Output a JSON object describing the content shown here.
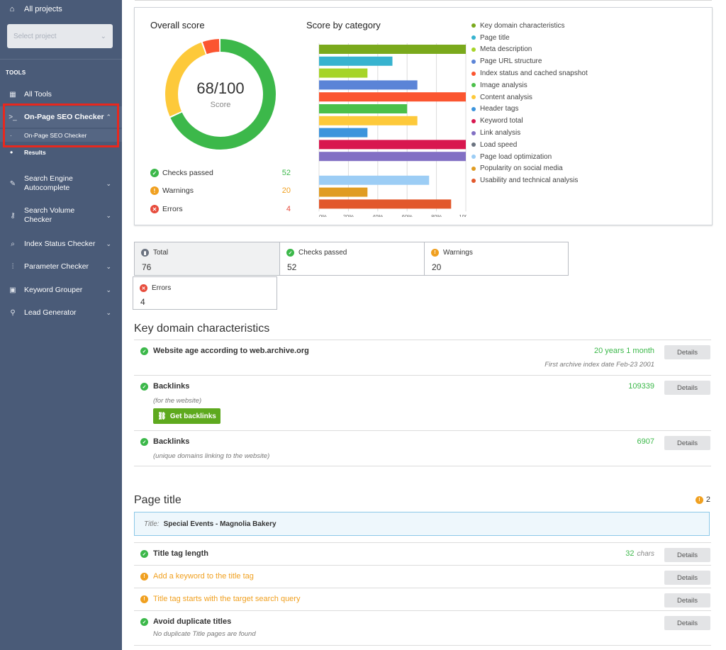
{
  "sidebar": {
    "all_projects": "All projects",
    "select_placeholder": "Select project",
    "tools_heading": "TOOLS",
    "items": [
      {
        "label": "All Tools",
        "icon": "grid-icon"
      },
      {
        "label": "On-Page SEO Checker",
        "icon": "terminal-icon"
      },
      {
        "label": "Search Engine Autocomplete",
        "icon": "pencil-icon"
      },
      {
        "label": "Search Volume Checker",
        "icon": "key-icon"
      },
      {
        "label": "Index Status Checker",
        "icon": "search-icon"
      },
      {
        "label": "Parameter Checker",
        "icon": "sliders-icon"
      },
      {
        "label": "Keyword Grouper",
        "icon": "folder-icon"
      },
      {
        "label": "Lead Generator",
        "icon": "user-search-icon"
      }
    ],
    "subitems": [
      "On-Page SEO Checker",
      "Results"
    ]
  },
  "overview": {
    "overall_title": "Overall score",
    "score": "68/100",
    "score_label": "Score",
    "category_title": "Score by category",
    "stats": [
      {
        "label": "Checks passed",
        "value": "52",
        "color": "#3cb84a"
      },
      {
        "label": "Warnings",
        "value": "20",
        "color": "#f0a020"
      },
      {
        "label": "Errors",
        "value": "4",
        "color": "#e74c3c"
      }
    ]
  },
  "chart_data": {
    "type": "bar",
    "orientation": "horizontal",
    "categories": [
      "Key domain characteristics",
      "Page title",
      "Meta description",
      "Page URL structure",
      "Index status and cached snapshot",
      "Image analysis",
      "Content analysis",
      "Header tags",
      "Keyword total",
      "Link analysis",
      "Load speed",
      "Page load optimization",
      "Popularity on social media",
      "Usability and technical analysis"
    ],
    "values": [
      100,
      50,
      33,
      67,
      100,
      60,
      67,
      33,
      100,
      100,
      0,
      75,
      33,
      90
    ],
    "colors": [
      "#7aa91c",
      "#37b3cf",
      "#a6d428",
      "#5b84d7",
      "#fb5530",
      "#4bc04a",
      "#fdc93a",
      "#3c94dc",
      "#d8174f",
      "#8270c4",
      "#6b7380",
      "#9ccdf5",
      "#e09c22",
      "#e2582c"
    ],
    "xlim": [
      0,
      100
    ],
    "ticks": [
      "0%",
      "20%",
      "40%",
      "60%",
      "80%",
      "100%"
    ],
    "donut": {
      "passed": 52,
      "warnings": 20,
      "errors": 4
    }
  },
  "summary": [
    {
      "label": "Total",
      "value": "76",
      "icon": "chart-icon"
    },
    {
      "label": "Checks passed",
      "value": "52",
      "icon": "check-icon"
    },
    {
      "label": "Warnings",
      "value": "20",
      "icon": "warning-icon"
    },
    {
      "label": "Errors",
      "value": "4",
      "icon": "error-icon"
    }
  ],
  "key_domain": {
    "title": "Key domain characteristics",
    "rows": [
      {
        "title": "Website age according to web.archive.org",
        "metric": "20 years 1 month",
        "metric_sub": "First archive index date Feb-23 2001",
        "details": "Details"
      },
      {
        "title": "Backlinks",
        "sub": "(for the website)",
        "metric": "109339",
        "button": "Get backlinks",
        "details": "Details"
      },
      {
        "title": "Backlinks",
        "sub": "(unique domains linking to the website)",
        "metric": "6907",
        "details": "Details"
      }
    ]
  },
  "page_title": {
    "title": "Page title",
    "warning_count": "2",
    "box_key": "Title:",
    "box_value": "Special Events - Magnolia Bakery",
    "rows": [
      {
        "title": "Title tag length",
        "metric": "32",
        "unit": "chars",
        "details": "Details"
      },
      {
        "title": "Add a keyword to the title tag",
        "details": "Details"
      },
      {
        "title": "Title tag starts with the target search query",
        "details": "Details"
      },
      {
        "title": "Avoid duplicate titles",
        "sub": "No duplicate Title pages are found",
        "details": "Details"
      }
    ]
  }
}
